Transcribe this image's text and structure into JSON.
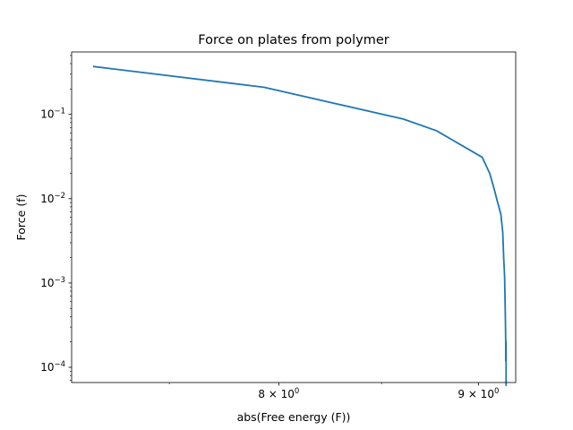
{
  "chart_data": {
    "type": "line",
    "title": "Force on plates from polymer",
    "xlabel": "abs(Free energy (F))",
    "ylabel": "Force (f)",
    "xscale": "log",
    "yscale": "log",
    "xlim": [
      7.08,
      9.2
    ],
    "ylim": [
      6.6e-05,
      0.55
    ],
    "grid": false,
    "x_ticks": [
      {
        "value": 8,
        "label": "8 × 10",
        "exp": "0"
      },
      {
        "value": 9,
        "label": "9 × 10",
        "exp": "0"
      }
    ],
    "y_ticks": [
      {
        "value": 0.1,
        "label": "10",
        "exp": "−1"
      },
      {
        "value": 0.01,
        "label": "10",
        "exp": "−2"
      },
      {
        "value": 0.001,
        "label": "10",
        "exp": "−3"
      },
      {
        "value": 0.0001,
        "label": "10",
        "exp": "−4"
      }
    ],
    "series": [
      {
        "color": "#1f77b4",
        "x": [
          7.17,
          7.93,
          8.61,
          8.78,
          9.02,
          9.06,
          9.08,
          9.1,
          9.12,
          9.13,
          9.135,
          9.14,
          9.142,
          9.144,
          9.146,
          9.146,
          9.148,
          9.148,
          9.148
        ],
        "y": [
          0.37,
          0.21,
          0.088,
          0.064,
          0.031,
          0.02,
          0.014,
          0.0095,
          0.0065,
          0.004,
          0.002,
          0.0012,
          0.0007,
          0.0004,
          0.0002,
          0.00012,
          0.0002,
          0.0001,
          6e-05
        ]
      }
    ]
  }
}
